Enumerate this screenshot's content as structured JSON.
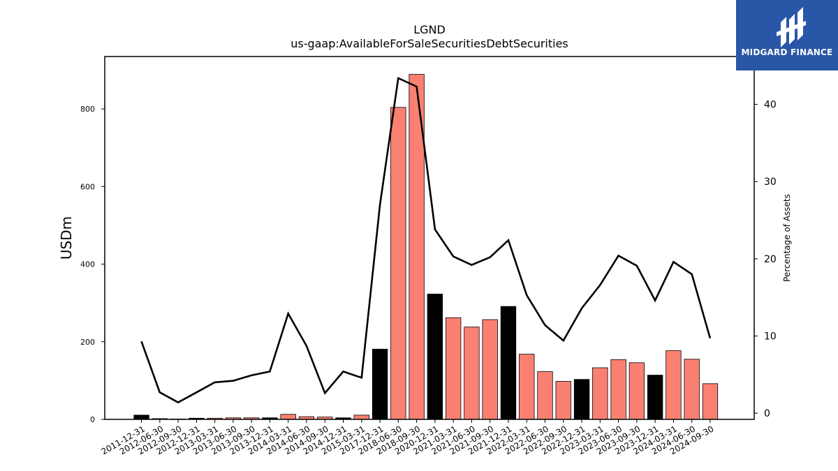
{
  "brand": {
    "logo_text": "MIDGARD FINANCE",
    "bg_color": "#2a56a8"
  },
  "chart_data": {
    "type": "bar",
    "title": "LGND",
    "subtitle": "us-gaap:AvailableForSaleSecuritiesDebtSecurities",
    "ylabel": "USDm",
    "y2label": "Percentage of Assets",
    "ylim": [
      0,
      935
    ],
    "y2lim": [
      -0.8,
      46.2
    ],
    "yticks": [
      0,
      200,
      400,
      600,
      800
    ],
    "y2ticks": [
      0,
      10,
      20,
      30,
      40
    ],
    "grid": false,
    "legend": "none",
    "colors": {
      "annual": "#000000",
      "quarterly": "#fa8072",
      "line": "#000000"
    },
    "categories": [
      "2011-12-31",
      "2012-06-30",
      "2012-09-30",
      "2012-12-31",
      "2013-03-31",
      "2013-06-30",
      "2013-09-30",
      "2013-12-31",
      "2014-03-31",
      "2014-06-30",
      "2014-09-30",
      "2014-12-31",
      "2015-03-31",
      "2017-12-31",
      "2018-06-30",
      "2018-09-30",
      "2020-12-31",
      "2021-03-31",
      "2021-06-30",
      "2021-09-30",
      "2021-12-31",
      "2022-03-31",
      "2022-06-30",
      "2022-09-30",
      "2022-12-31",
      "2023-03-31",
      "2023-06-30",
      "2023-09-30",
      "2023-12-31",
      "2024-03-31",
      "2024-06-30",
      "2024-09-30"
    ],
    "series": [
      {
        "values": [
          11,
          2,
          1,
          3,
          3,
          4,
          4,
          4,
          13,
          7,
          6,
          4,
          11,
          181,
          804,
          889,
          323,
          262,
          238,
          257,
          291,
          168,
          123,
          98,
          103,
          133,
          154,
          146,
          114,
          177,
          155,
          92
        ],
        "period": [
          "annual",
          "quarterly",
          "quarterly",
          "annual",
          "quarterly",
          "quarterly",
          "quarterly",
          "annual",
          "quarterly",
          "quarterly",
          "quarterly",
          "annual",
          "quarterly",
          "annual",
          "quarterly",
          "quarterly",
          "annual",
          "quarterly",
          "quarterly",
          "quarterly",
          "annual",
          "quarterly",
          "quarterly",
          "quarterly",
          "annual",
          "quarterly",
          "quarterly",
          "quarterly",
          "annual",
          "quarterly",
          "quarterly",
          "quarterly"
        ]
      },
      {
        "axis": "right",
        "values": [
          9.3,
          2.7,
          1.4,
          2.7,
          4.0,
          4.2,
          4.9,
          5.4,
          12.9,
          8.7,
          2.6,
          5.4,
          4.6,
          27.0,
          43.4,
          42.3,
          23.8,
          20.3,
          19.2,
          20.2,
          22.4,
          15.3,
          11.4,
          9.4,
          13.6,
          16.6,
          20.4,
          19.1,
          14.6,
          19.6,
          18.0,
          9.7
        ]
      }
    ]
  }
}
